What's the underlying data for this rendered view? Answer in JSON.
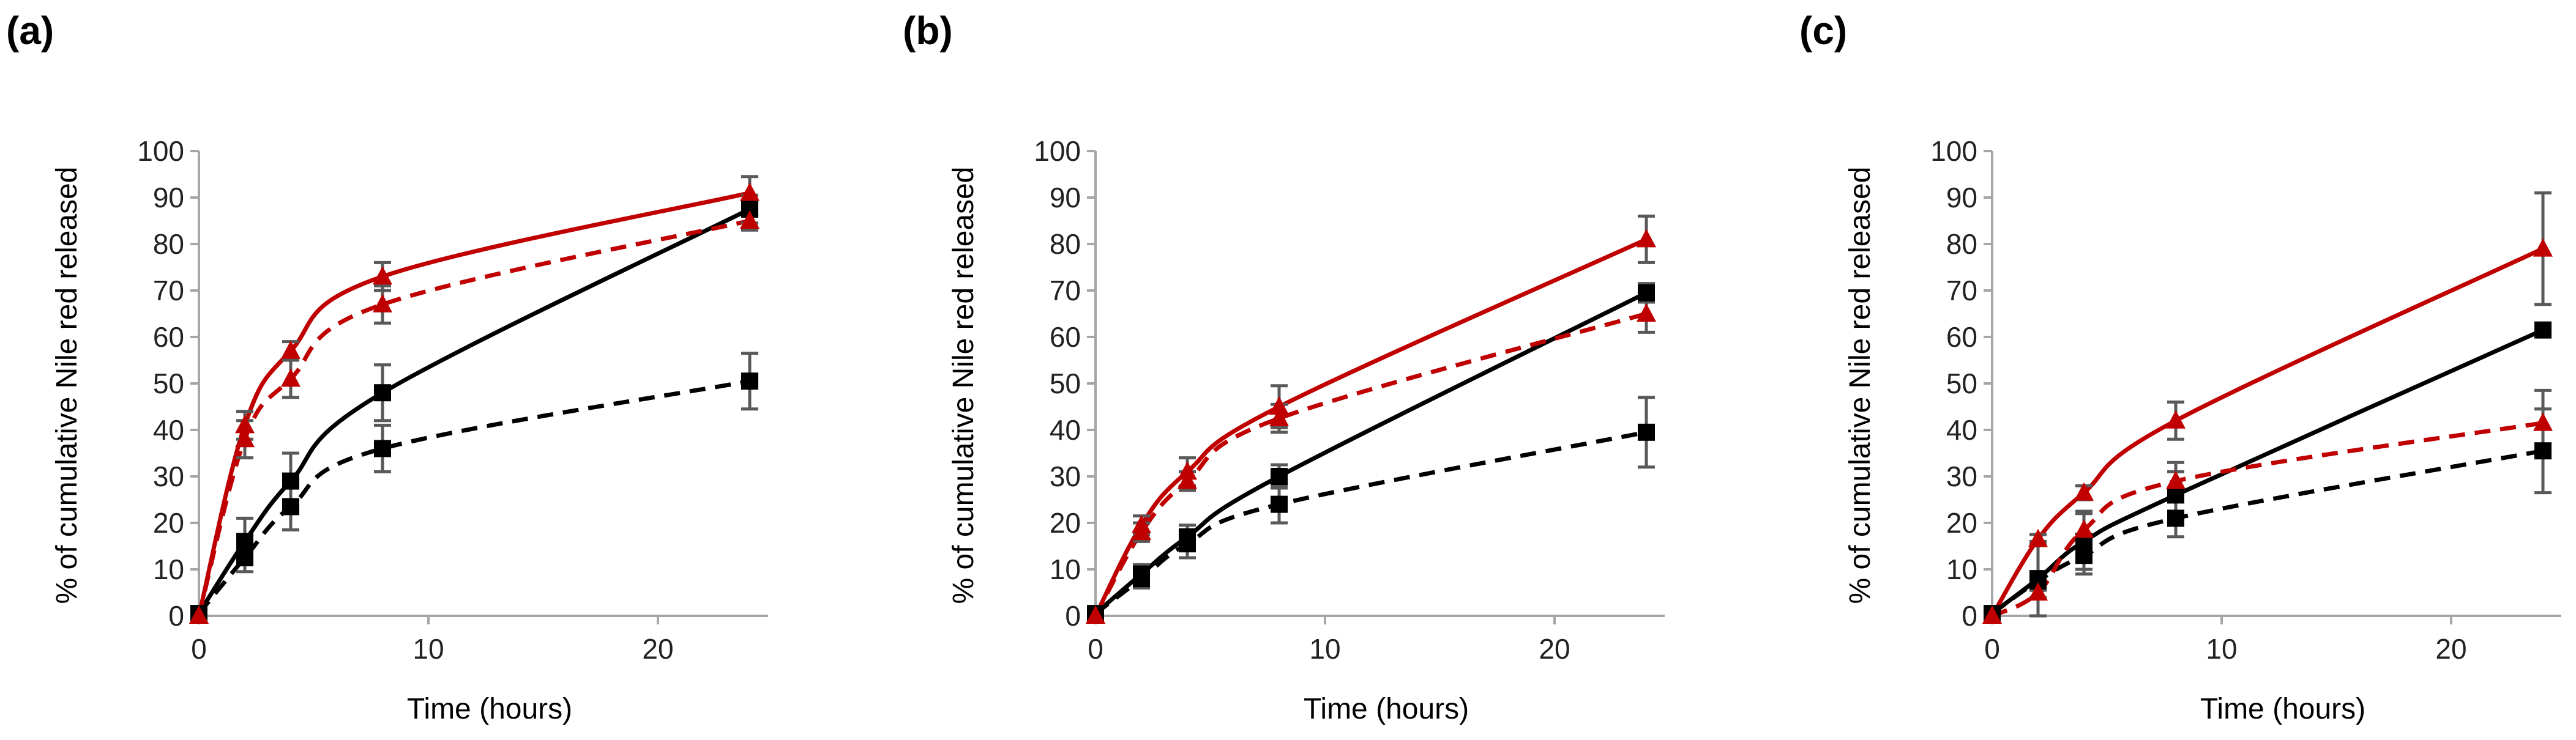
{
  "chart_data": [
    {
      "panel": "(a)",
      "type": "line",
      "xlabel": "Time (hours)",
      "ylabel": "% of cumulative Nile red released",
      "xlim": [
        0,
        24
      ],
      "ylim": [
        0,
        100
      ],
      "xticks": [
        0,
        10,
        20
      ],
      "yticks": [
        0,
        10,
        20,
        30,
        40,
        50,
        60,
        70,
        80,
        90,
        100
      ],
      "series": [
        {
          "name": "black-solid",
          "color": "#000000",
          "marker": "square",
          "line": "solid",
          "x": [
            0,
            2,
            4,
            8,
            24
          ],
          "y": [
            0.5,
            16,
            29,
            48,
            87.5
          ],
          "err": [
            0,
            5,
            6,
            6,
            3
          ]
        },
        {
          "name": "black-dashed",
          "color": "#000000",
          "marker": "square",
          "line": "dashed",
          "x": [
            0,
            2,
            4,
            8,
            24
          ],
          "y": [
            0.5,
            12.5,
            23.5,
            36,
            50.5
          ],
          "err": [
            0,
            3,
            5,
            5,
            6
          ]
        },
        {
          "name": "red-solid",
          "color": "#c00000",
          "marker": "triangle",
          "line": "solid",
          "x": [
            0,
            2,
            4,
            8,
            24
          ],
          "y": [
            0,
            41,
            57,
            73,
            91
          ],
          "err": [
            0,
            3,
            2,
            3,
            3.5
          ]
        },
        {
          "name": "red-dashed",
          "color": "#c00000",
          "marker": "triangle",
          "line": "dashed",
          "x": [
            0,
            2,
            4,
            8,
            24
          ],
          "y": [
            0,
            38,
            51,
            67,
            85
          ],
          "err": [
            0,
            4,
            4,
            4,
            2
          ]
        }
      ]
    },
    {
      "panel": "(b)",
      "type": "line",
      "xlabel": "Time (hours)",
      "ylabel": "% of cumulative Nile red released",
      "xlim": [
        0,
        24
      ],
      "ylim": [
        0,
        100
      ],
      "xticks": [
        0,
        10,
        20
      ],
      "yticks": [
        0,
        10,
        20,
        30,
        40,
        50,
        60,
        70,
        80,
        90,
        100
      ],
      "series": [
        {
          "name": "black-solid",
          "color": "#000000",
          "marker": "square",
          "line": "solid",
          "x": [
            0,
            2,
            4,
            8,
            24
          ],
          "y": [
            0.5,
            9,
            17,
            30,
            69.5
          ],
          "err": [
            0,
            2,
            2.5,
            2.5,
            2
          ]
        },
        {
          "name": "black-dashed",
          "color": "#000000",
          "marker": "square",
          "line": "dashed",
          "x": [
            0,
            2,
            4,
            8,
            24
          ],
          "y": [
            0.5,
            8,
            15.5,
            24,
            39.5
          ],
          "err": [
            0,
            2,
            3,
            4,
            7.5
          ]
        },
        {
          "name": "red-solid",
          "color": "#c00000",
          "marker": "triangle",
          "line": "solid",
          "x": [
            0,
            2,
            4,
            8,
            24
          ],
          "y": [
            0,
            19.5,
            31,
            45,
            81
          ],
          "err": [
            0,
            2,
            3,
            4.5,
            5
          ]
        },
        {
          "name": "red-dashed",
          "color": "#c00000",
          "marker": "triangle",
          "line": "dashed",
          "x": [
            0,
            2,
            4,
            8,
            24
          ],
          "y": [
            0,
            18,
            29,
            42.5,
            65
          ],
          "err": [
            0,
            2,
            2,
            3,
            4
          ]
        }
      ]
    },
    {
      "panel": "(c)",
      "type": "line",
      "xlabel": "Time (hours)",
      "ylabel": "% of cumulative Nile red released",
      "xlim": [
        0,
        24
      ],
      "ylim": [
        0,
        100
      ],
      "xticks": [
        0,
        10,
        20
      ],
      "yticks": [
        0,
        10,
        20,
        30,
        40,
        50,
        60,
        70,
        80,
        90,
        100
      ],
      "series": [
        {
          "name": "black-solid",
          "color": "#000000",
          "marker": "square",
          "line": "solid",
          "x": [
            0,
            2,
            4,
            8,
            24
          ],
          "y": [
            0.5,
            8,
            16,
            26,
            61.5
          ],
          "err": [
            0,
            8,
            6,
            5,
            1
          ]
        },
        {
          "name": "black-dashed",
          "color": "#000000",
          "marker": "square",
          "line": "dashed",
          "x": [
            0,
            2,
            4,
            8,
            24
          ],
          "y": [
            0.5,
            7.5,
            13,
            21,
            35.5
          ],
          "err": [
            0,
            2,
            4,
            4,
            9
          ]
        },
        {
          "name": "red-solid",
          "color": "#c00000",
          "marker": "triangle",
          "line": "solid",
          "x": [
            0,
            2,
            4,
            8,
            24
          ],
          "y": [
            0,
            16.5,
            26.5,
            42,
            79
          ],
          "err": [
            0,
            1,
            1.5,
            4,
            12
          ]
        },
        {
          "name": "red-dashed",
          "color": "#c00000",
          "marker": "triangle",
          "line": "dashed",
          "x": [
            0,
            2,
            4,
            8,
            24
          ],
          "y": [
            0,
            5,
            18.5,
            29,
            41.5
          ],
          "err": [
            0,
            1,
            4,
            4,
            7
          ]
        }
      ]
    }
  ]
}
